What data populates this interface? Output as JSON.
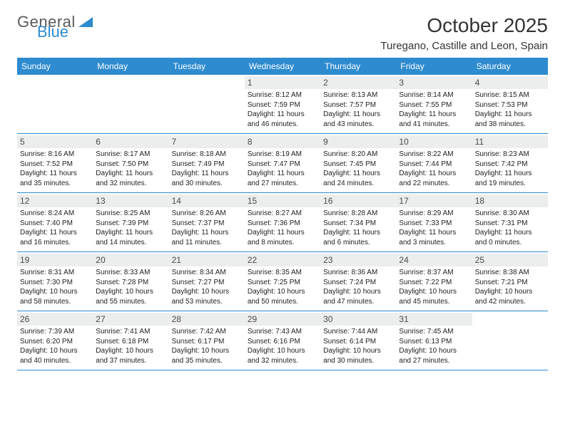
{
  "brand": {
    "word1": "General",
    "word2": "Blue"
  },
  "title": "October 2025",
  "location": "Turegano, Castille and Leon, Spain",
  "colors": {
    "header_bg": "#2e8bcf",
    "header_text": "#ffffff",
    "daynum_bg": "#eceded",
    "row_border": "#2e8bcf",
    "body_text": "#222222",
    "title_text": "#333333",
    "logo_gray": "#5a5a5a",
    "logo_blue": "#2e8bcf"
  },
  "layout": {
    "columns": 7,
    "header_fontsize": 12,
    "daynum_fontsize": 12,
    "info_fontsize": 10,
    "title_fontsize": 28,
    "location_fontsize": 15
  },
  "day_names": [
    "Sunday",
    "Monday",
    "Tuesday",
    "Wednesday",
    "Thursday",
    "Friday",
    "Saturday"
  ],
  "weeks": [
    [
      {
        "n": "",
        "sr": "",
        "ss": "",
        "dl": ""
      },
      {
        "n": "",
        "sr": "",
        "ss": "",
        "dl": ""
      },
      {
        "n": "",
        "sr": "",
        "ss": "",
        "dl": ""
      },
      {
        "n": "1",
        "sr": "Sunrise: 8:12 AM",
        "ss": "Sunset: 7:59 PM",
        "dl": "Daylight: 11 hours and 46 minutes."
      },
      {
        "n": "2",
        "sr": "Sunrise: 8:13 AM",
        "ss": "Sunset: 7:57 PM",
        "dl": "Daylight: 11 hours and 43 minutes."
      },
      {
        "n": "3",
        "sr": "Sunrise: 8:14 AM",
        "ss": "Sunset: 7:55 PM",
        "dl": "Daylight: 11 hours and 41 minutes."
      },
      {
        "n": "4",
        "sr": "Sunrise: 8:15 AM",
        "ss": "Sunset: 7:53 PM",
        "dl": "Daylight: 11 hours and 38 minutes."
      }
    ],
    [
      {
        "n": "5",
        "sr": "Sunrise: 8:16 AM",
        "ss": "Sunset: 7:52 PM",
        "dl": "Daylight: 11 hours and 35 minutes."
      },
      {
        "n": "6",
        "sr": "Sunrise: 8:17 AM",
        "ss": "Sunset: 7:50 PM",
        "dl": "Daylight: 11 hours and 32 minutes."
      },
      {
        "n": "7",
        "sr": "Sunrise: 8:18 AM",
        "ss": "Sunset: 7:49 PM",
        "dl": "Daylight: 11 hours and 30 minutes."
      },
      {
        "n": "8",
        "sr": "Sunrise: 8:19 AM",
        "ss": "Sunset: 7:47 PM",
        "dl": "Daylight: 11 hours and 27 minutes."
      },
      {
        "n": "9",
        "sr": "Sunrise: 8:20 AM",
        "ss": "Sunset: 7:45 PM",
        "dl": "Daylight: 11 hours and 24 minutes."
      },
      {
        "n": "10",
        "sr": "Sunrise: 8:22 AM",
        "ss": "Sunset: 7:44 PM",
        "dl": "Daylight: 11 hours and 22 minutes."
      },
      {
        "n": "11",
        "sr": "Sunrise: 8:23 AM",
        "ss": "Sunset: 7:42 PM",
        "dl": "Daylight: 11 hours and 19 minutes."
      }
    ],
    [
      {
        "n": "12",
        "sr": "Sunrise: 8:24 AM",
        "ss": "Sunset: 7:40 PM",
        "dl": "Daylight: 11 hours and 16 minutes."
      },
      {
        "n": "13",
        "sr": "Sunrise: 8:25 AM",
        "ss": "Sunset: 7:39 PM",
        "dl": "Daylight: 11 hours and 14 minutes."
      },
      {
        "n": "14",
        "sr": "Sunrise: 8:26 AM",
        "ss": "Sunset: 7:37 PM",
        "dl": "Daylight: 11 hours and 11 minutes."
      },
      {
        "n": "15",
        "sr": "Sunrise: 8:27 AM",
        "ss": "Sunset: 7:36 PM",
        "dl": "Daylight: 11 hours and 8 minutes."
      },
      {
        "n": "16",
        "sr": "Sunrise: 8:28 AM",
        "ss": "Sunset: 7:34 PM",
        "dl": "Daylight: 11 hours and 6 minutes."
      },
      {
        "n": "17",
        "sr": "Sunrise: 8:29 AM",
        "ss": "Sunset: 7:33 PM",
        "dl": "Daylight: 11 hours and 3 minutes."
      },
      {
        "n": "18",
        "sr": "Sunrise: 8:30 AM",
        "ss": "Sunset: 7:31 PM",
        "dl": "Daylight: 11 hours and 0 minutes."
      }
    ],
    [
      {
        "n": "19",
        "sr": "Sunrise: 8:31 AM",
        "ss": "Sunset: 7:30 PM",
        "dl": "Daylight: 10 hours and 58 minutes."
      },
      {
        "n": "20",
        "sr": "Sunrise: 8:33 AM",
        "ss": "Sunset: 7:28 PM",
        "dl": "Daylight: 10 hours and 55 minutes."
      },
      {
        "n": "21",
        "sr": "Sunrise: 8:34 AM",
        "ss": "Sunset: 7:27 PM",
        "dl": "Daylight: 10 hours and 53 minutes."
      },
      {
        "n": "22",
        "sr": "Sunrise: 8:35 AM",
        "ss": "Sunset: 7:25 PM",
        "dl": "Daylight: 10 hours and 50 minutes."
      },
      {
        "n": "23",
        "sr": "Sunrise: 8:36 AM",
        "ss": "Sunset: 7:24 PM",
        "dl": "Daylight: 10 hours and 47 minutes."
      },
      {
        "n": "24",
        "sr": "Sunrise: 8:37 AM",
        "ss": "Sunset: 7:22 PM",
        "dl": "Daylight: 10 hours and 45 minutes."
      },
      {
        "n": "25",
        "sr": "Sunrise: 8:38 AM",
        "ss": "Sunset: 7:21 PM",
        "dl": "Daylight: 10 hours and 42 minutes."
      }
    ],
    [
      {
        "n": "26",
        "sr": "Sunrise: 7:39 AM",
        "ss": "Sunset: 6:20 PM",
        "dl": "Daylight: 10 hours and 40 minutes."
      },
      {
        "n": "27",
        "sr": "Sunrise: 7:41 AM",
        "ss": "Sunset: 6:18 PM",
        "dl": "Daylight: 10 hours and 37 minutes."
      },
      {
        "n": "28",
        "sr": "Sunrise: 7:42 AM",
        "ss": "Sunset: 6:17 PM",
        "dl": "Daylight: 10 hours and 35 minutes."
      },
      {
        "n": "29",
        "sr": "Sunrise: 7:43 AM",
        "ss": "Sunset: 6:16 PM",
        "dl": "Daylight: 10 hours and 32 minutes."
      },
      {
        "n": "30",
        "sr": "Sunrise: 7:44 AM",
        "ss": "Sunset: 6:14 PM",
        "dl": "Daylight: 10 hours and 30 minutes."
      },
      {
        "n": "31",
        "sr": "Sunrise: 7:45 AM",
        "ss": "Sunset: 6:13 PM",
        "dl": "Daylight: 10 hours and 27 minutes."
      },
      {
        "n": "",
        "sr": "",
        "ss": "",
        "dl": ""
      }
    ]
  ]
}
